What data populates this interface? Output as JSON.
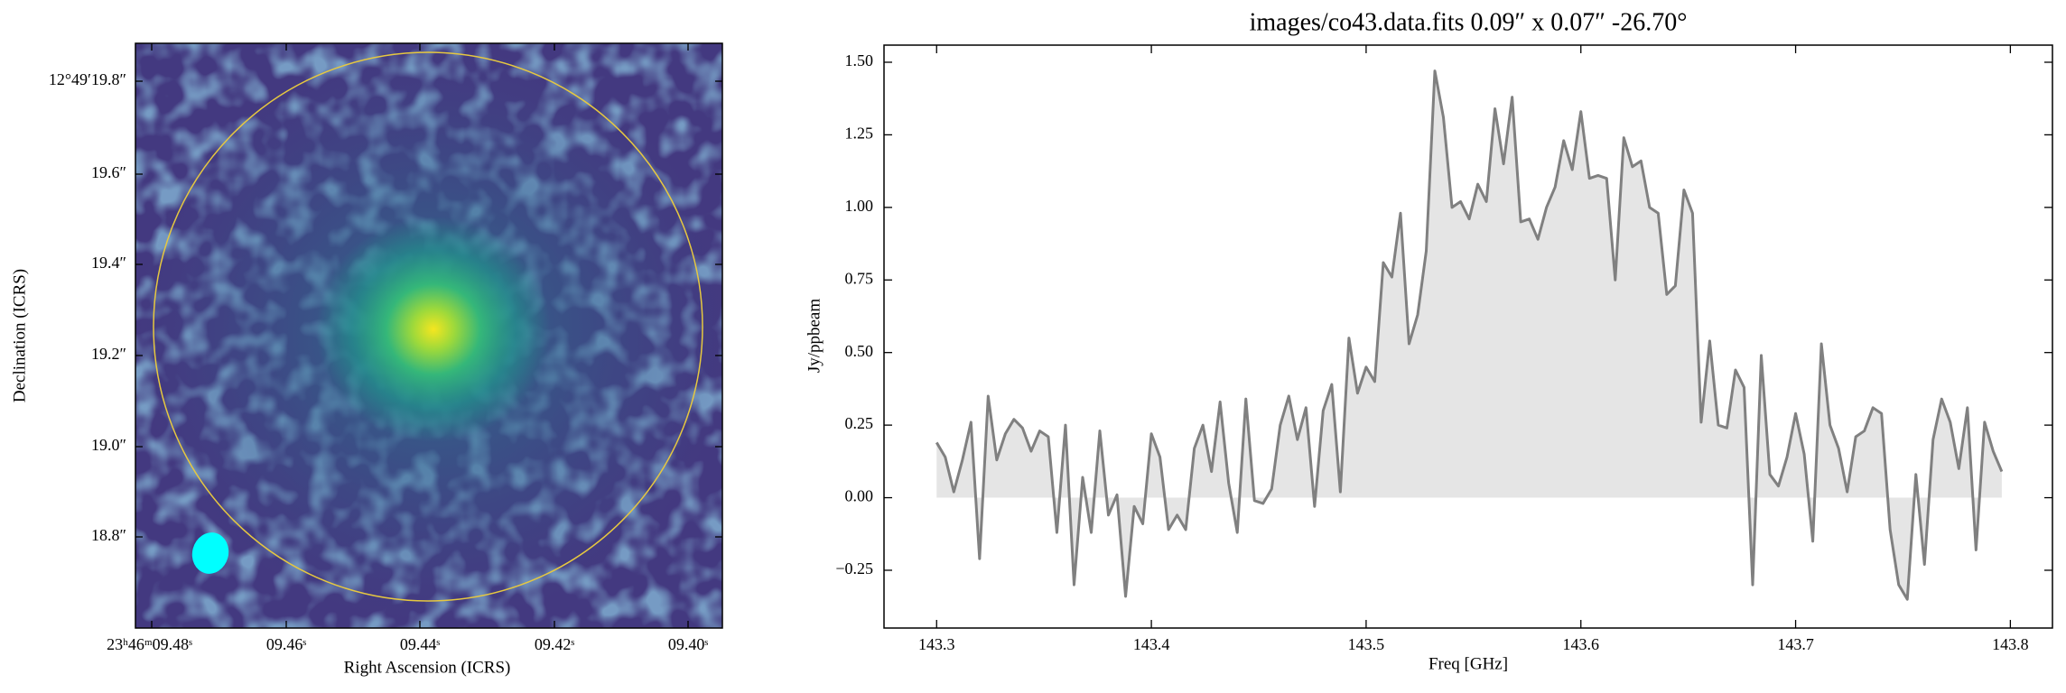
{
  "chart_data": [
    {
      "type": "image",
      "xlabel": "Right Ascension (ICRS)",
      "ylabel": "Declination (ICRS)",
      "xtick_labels": [
        "23ʰ46ᵐ09.48ˢ",
        "09.46ˢ",
        "09.44ˢ",
        "09.42ˢ",
        "09.40ˢ"
      ],
      "ytick_labels": [
        "12°49′19.8″",
        "19.6″",
        "19.4″",
        "19.2″",
        "19.0″",
        "18.8″"
      ],
      "circle_color": "#e6c840",
      "beam_color": "#00ffff"
    },
    {
      "type": "line",
      "title": "images/co43.data.fits 0.09″ x 0.07″ -26.70°",
      "xlabel": "Freq [GHz]",
      "ylabel": "Jy/ppbeam",
      "color": "#808080",
      "fill_color": "#e5e5e5",
      "xlim": [
        143.2755,
        143.8196
      ],
      "ylim": [
        -0.449,
        1.559
      ],
      "xticks": [
        143.3,
        143.4,
        143.5,
        143.6,
        143.7,
        143.8
      ],
      "yticks": [
        {
          "value": -0.25,
          "label": "−0.25"
        },
        {
          "value": 0,
          "label": "0.00"
        },
        {
          "value": 0.25,
          "label": "0.25"
        },
        {
          "value": 0.5,
          "label": "0.50"
        },
        {
          "value": 0.75,
          "label": "0.75"
        },
        {
          "value": 1,
          "label": "1.00"
        },
        {
          "value": 1.25,
          "label": "1.25"
        },
        {
          "value": 1.5,
          "label": "1.50"
        }
      ],
      "x": [
        143.3,
        143.304,
        143.308,
        143.312,
        143.316,
        143.32,
        143.324,
        143.328,
        143.332,
        143.336,
        143.34,
        143.344,
        143.348,
        143.352,
        143.356,
        143.36,
        143.364,
        143.368,
        143.372,
        143.376,
        143.38,
        143.384,
        143.388,
        143.392,
        143.396,
        143.4,
        143.404,
        143.408,
        143.412,
        143.416,
        143.42,
        143.424,
        143.428,
        143.432,
        143.436,
        143.44,
        143.444,
        143.448,
        143.452,
        143.456,
        143.46,
        143.464,
        143.468,
        143.472,
        143.476,
        143.48,
        143.484,
        143.488,
        143.492,
        143.496,
        143.5,
        143.504,
        143.508,
        143.512,
        143.516,
        143.52,
        143.524,
        143.528,
        143.532,
        143.536,
        143.54,
        143.544,
        143.548,
        143.552,
        143.556,
        143.56,
        143.564,
        143.568,
        143.572,
        143.576,
        143.58,
        143.584,
        143.588,
        143.592,
        143.596,
        143.6,
        143.604,
        143.608,
        143.612,
        143.616,
        143.62,
        143.624,
        143.628,
        143.632,
        143.636,
        143.64,
        143.644,
        143.648,
        143.652,
        143.656,
        143.66,
        143.664,
        143.668,
        143.672,
        143.676,
        143.68,
        143.684,
        143.688,
        143.692,
        143.696,
        143.7,
        143.704,
        143.708,
        143.712,
        143.716,
        143.72,
        143.724,
        143.728,
        143.732,
        143.736,
        143.74,
        143.744,
        143.748,
        143.752,
        143.756,
        143.76,
        143.764,
        143.768,
        143.772,
        143.776,
        143.78,
        143.784,
        143.788,
        143.792,
        143.796
      ],
      "values": [
        0.19,
        0.14,
        0.02,
        0.13,
        0.26,
        -0.21,
        0.35,
        0.13,
        0.22,
        0.27,
        0.24,
        0.16,
        0.23,
        0.21,
        -0.12,
        0.25,
        -0.3,
        0.07,
        -0.12,
        0.23,
        -0.06,
        0.01,
        -0.34,
        -0.03,
        -0.09,
        0.22,
        0.14,
        -0.11,
        -0.06,
        -0.11,
        0.17,
        0.25,
        0.09,
        0.33,
        0.05,
        -0.12,
        0.34,
        -0.01,
        -0.02,
        0.03,
        0.25,
        0.35,
        0.2,
        0.31,
        -0.03,
        0.3,
        0.39,
        0.02,
        0.55,
        0.36,
        0.45,
        0.4,
        0.81,
        0.76,
        0.98,
        0.53,
        0.63,
        0.85,
        1.47,
        1.31,
        1.0,
        1.02,
        0.96,
        1.08,
        1.02,
        1.34,
        1.15,
        1.38,
        0.95,
        0.96,
        0.89,
        1.0,
        1.07,
        1.23,
        1.13,
        1.33,
        1.1,
        1.11,
        1.1,
        0.75,
        1.24,
        1.14,
        1.16,
        1.0,
        0.98,
        0.7,
        0.73,
        1.06,
        0.98,
        0.26,
        0.54,
        0.25,
        0.24,
        0.44,
        0.38,
        -0.3,
        0.49,
        0.08,
        0.04,
        0.14,
        0.29,
        0.15,
        -0.15,
        0.53,
        0.25,
        0.17,
        0.02,
        0.21,
        0.23,
        0.31,
        0.29,
        -0.11,
        -0.3,
        -0.35,
        0.08,
        -0.23,
        0.2,
        0.34,
        0.26,
        0.1,
        0.31,
        -0.18,
        0.26,
        0.16,
        0.09
      ]
    }
  ]
}
